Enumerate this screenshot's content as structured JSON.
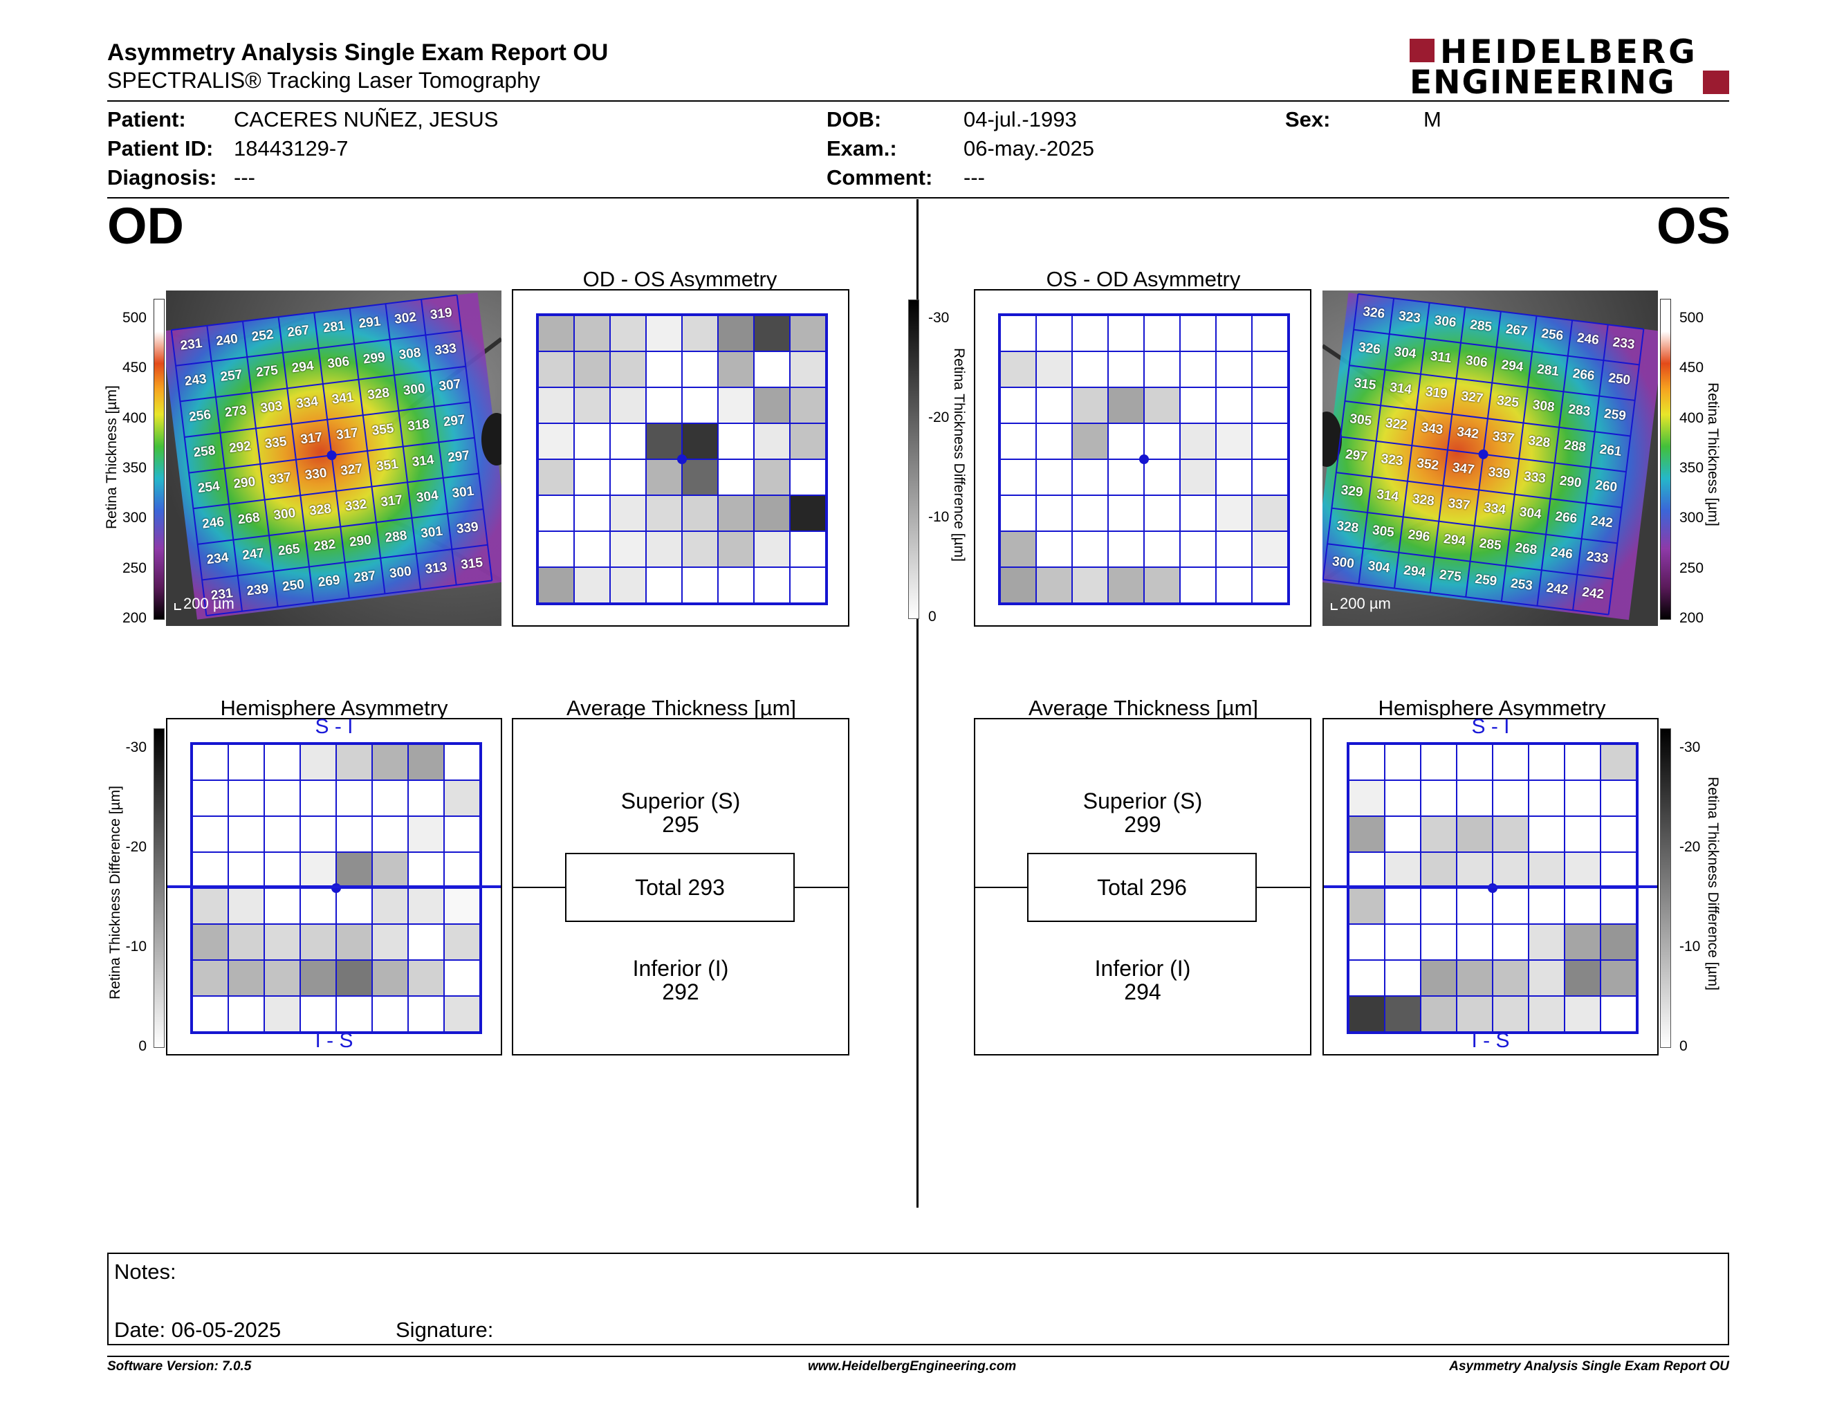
{
  "report": {
    "title": "Asymmetry Analysis Single Exam Report OU",
    "subtitle": "SPECTRALIS® Tracking Laser Tomography",
    "logo_line1": "HEIDELBERG",
    "logo_line2": "ENGINEERING"
  },
  "patient": {
    "name_label": "Patient:",
    "name": "CACERES NUÑEZ, JESUS",
    "id_label": "Patient ID:",
    "id": "18443129-7",
    "diagnosis_label": "Diagnosis:",
    "diagnosis": "---",
    "dob_label": "DOB:",
    "dob": "04-jul.-1993",
    "exam_label": "Exam.:",
    "exam": "06-may.-2025",
    "comment_label": "Comment:",
    "comment": "---",
    "sex_label": "Sex:",
    "sex": "M"
  },
  "od": {
    "eye_label": "OD",
    "asym_title": "OD - OS Asymmetry",
    "hemi_title": "Hemisphere Asymmetry",
    "avg_title": "Average Thickness [µm]",
    "hemi_top": "S - I",
    "hemi_bottom": "I - S",
    "scale_label": "200 µm",
    "superior_label": "Superior (S)",
    "superior": "295",
    "total_label": "Total 293",
    "inferior_label": "Inferior (I)",
    "inferior": "292",
    "thickness_grid": [
      [
        231,
        240,
        252,
        267,
        281,
        291,
        302,
        319
      ],
      [
        243,
        257,
        275,
        294,
        306,
        299,
        308,
        333
      ],
      [
        256,
        273,
        303,
        334,
        341,
        328,
        300,
        307
      ],
      [
        258,
        292,
        335,
        317,
        317,
        355,
        318,
        297
      ],
      [
        254,
        290,
        337,
        330,
        327,
        351,
        314,
        297
      ],
      [
        246,
        268,
        300,
        328,
        332,
        317,
        304,
        301
      ],
      [
        234,
        247,
        265,
        282,
        290,
        288,
        301,
        339
      ],
      [
        231,
        239,
        250,
        269,
        287,
        300,
        313,
        315
      ]
    ],
    "asym_grid": [
      [
        10,
        8,
        5,
        2,
        5,
        15,
        24,
        10
      ],
      [
        6,
        8,
        6,
        0,
        0,
        10,
        0,
        4
      ],
      [
        3,
        5,
        3,
        0,
        0,
        2,
        12,
        8
      ],
      [
        2,
        0,
        0,
        23,
        27,
        0,
        3,
        8
      ],
      [
        6,
        0,
        0,
        10,
        20,
        0,
        8,
        0
      ],
      [
        0,
        0,
        3,
        5,
        6,
        10,
        12,
        29
      ],
      [
        0,
        0,
        2,
        3,
        5,
        8,
        3,
        0
      ],
      [
        12,
        3,
        3,
        0,
        0,
        0,
        0,
        0
      ]
    ],
    "hemi_grid": [
      [
        0,
        0,
        0,
        3,
        6,
        10,
        12,
        0
      ],
      [
        0,
        0,
        0,
        0,
        0,
        0,
        0,
        4
      ],
      [
        0,
        0,
        0,
        0,
        0,
        0,
        2,
        0
      ],
      [
        0,
        0,
        0,
        2,
        15,
        8,
        0,
        0
      ],
      [
        5,
        3,
        0,
        0,
        0,
        4,
        3,
        1
      ],
      [
        10,
        6,
        5,
        6,
        8,
        4,
        0,
        5
      ],
      [
        8,
        10,
        8,
        14,
        18,
        10,
        6,
        0
      ],
      [
        0,
        0,
        3,
        0,
        0,
        0,
        0,
        4
      ]
    ]
  },
  "os": {
    "eye_label": "OS",
    "asym_title": "OS - OD Asymmetry",
    "hemi_title": "Hemisphere Asymmetry",
    "avg_title": "Average Thickness [µm]",
    "hemi_top": "S - I",
    "hemi_bottom": "I - S",
    "scale_label": "200 µm",
    "superior_label": "Superior (S)",
    "superior": "299",
    "total_label": "Total 296",
    "inferior_label": "Inferior (I)",
    "inferior": "294",
    "thickness_grid": [
      [
        326,
        323,
        306,
        285,
        267,
        256,
        246,
        233
      ],
      [
        326,
        304,
        311,
        306,
        294,
        281,
        266,
        250
      ],
      [
        315,
        314,
        319,
        327,
        325,
        308,
        283,
        259
      ],
      [
        305,
        322,
        343,
        342,
        337,
        328,
        288,
        261
      ],
      [
        297,
        323,
        352,
        347,
        339,
        333,
        290,
        260
      ],
      [
        329,
        314,
        328,
        337,
        334,
        304,
        266,
        242
      ],
      [
        328,
        305,
        296,
        294,
        285,
        268,
        246,
        233
      ],
      [
        300,
        304,
        294,
        275,
        259,
        253,
        242,
        242
      ]
    ],
    "asym_grid": [
      [
        0,
        0,
        0,
        0,
        0,
        0,
        0,
        0
      ],
      [
        5,
        3,
        0,
        0,
        0,
        0,
        0,
        0
      ],
      [
        0,
        0,
        6,
        12,
        6,
        0,
        0,
        0
      ],
      [
        0,
        0,
        10,
        0,
        0,
        3,
        2,
        0
      ],
      [
        0,
        0,
        0,
        0,
        0,
        3,
        0,
        0
      ],
      [
        0,
        0,
        0,
        0,
        0,
        0,
        2,
        4
      ],
      [
        10,
        0,
        0,
        0,
        0,
        0,
        0,
        2
      ],
      [
        12,
        8,
        5,
        10,
        8,
        0,
        0,
        0
      ]
    ],
    "hemi_grid": [
      [
        0,
        0,
        0,
        0,
        0,
        0,
        0,
        6
      ],
      [
        2,
        0,
        0,
        0,
        0,
        0,
        0,
        0
      ],
      [
        12,
        0,
        6,
        8,
        6,
        0,
        0,
        0
      ],
      [
        0,
        3,
        6,
        4,
        4,
        4,
        3,
        0
      ],
      [
        8,
        0,
        0,
        0,
        0,
        0,
        0,
        0
      ],
      [
        0,
        0,
        0,
        0,
        0,
        4,
        12,
        14
      ],
      [
        0,
        0,
        12,
        10,
        8,
        4,
        16,
        12
      ],
      [
        26,
        22,
        8,
        6,
        5,
        4,
        3,
        0
      ]
    ]
  },
  "scales": {
    "thickness_ticks": [
      "500",
      "450",
      "400",
      "350",
      "300",
      "250",
      "200"
    ],
    "diff_ticks": [
      "-30",
      "-20",
      "-10",
      "0"
    ],
    "thickness_axis_label": "Retina Thickness [µm]",
    "od_thickness_axis_label": "Retina  Thickness [µm]",
    "diff_axis_label": "Retina Thickness Difference [µm]"
  },
  "notes": {
    "notes_label": "Notes:",
    "date_label": "Date: 06-05-2025",
    "signature_label": "Signature:"
  },
  "footer": {
    "version": "Software Version: 7.0.5",
    "url": "www.HeidelbergEngineering.com",
    "report_name": "Asymmetry Analysis Single Exam Report OU"
  },
  "colors": {
    "grid_blue": "#1515d0",
    "logo_red": "#9b1b30",
    "hemi_blue": "#1a1ad8"
  }
}
